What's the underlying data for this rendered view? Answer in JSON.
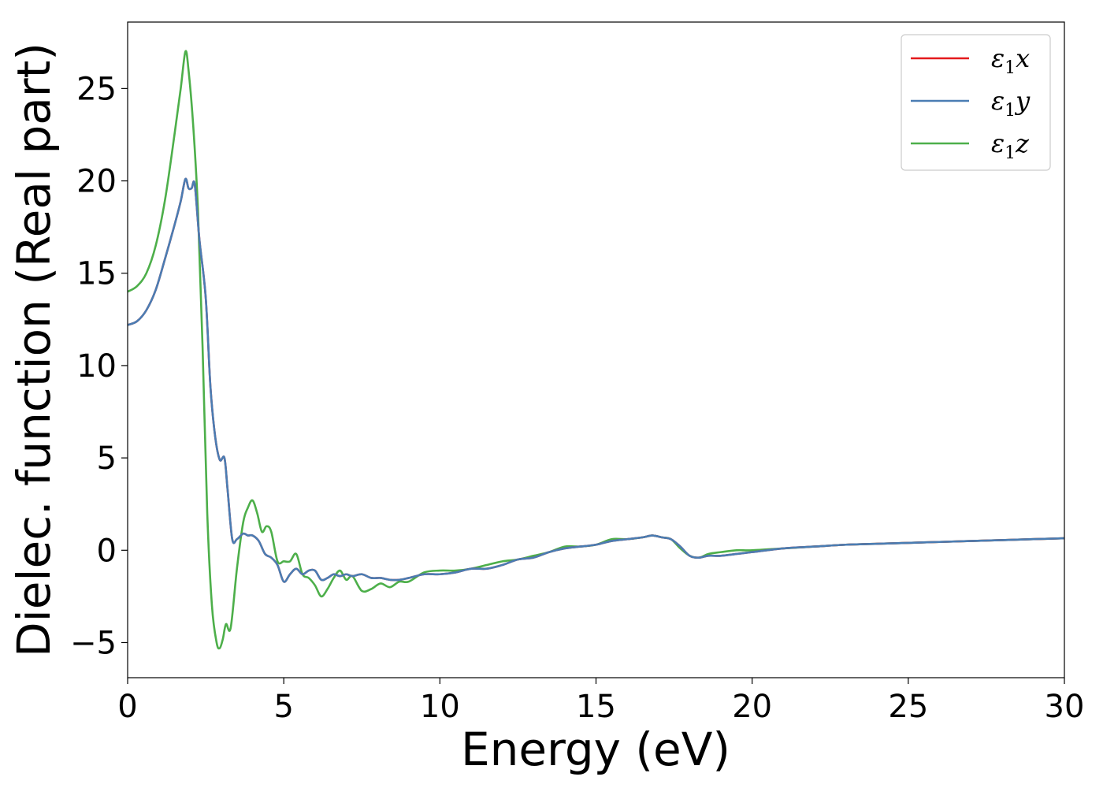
{
  "chart_data": {
    "type": "line",
    "xlabel": "Energy (eV)",
    "ylabel": "Dielec. function (Real part)",
    "xlim": [
      0,
      30
    ],
    "ylim": [
      -6.9,
      28.6
    ],
    "xticks": [
      0,
      5,
      10,
      15,
      20,
      25,
      30
    ],
    "xtick_labels": [
      "0",
      "5",
      "10",
      "15",
      "20",
      "25",
      "30"
    ],
    "yticks": [
      -5,
      0,
      5,
      10,
      15,
      20,
      25
    ],
    "ytick_labels": [
      "−5",
      "0",
      "5",
      "10",
      "15",
      "20",
      "25"
    ],
    "grid": false,
    "legend_position": "top-right",
    "series": [
      {
        "name": "ε1x",
        "legend_main": "ε",
        "legend_sub": "1",
        "legend_var": "x",
        "color": "#e41a1c",
        "x": [
          0,
          0.3,
          0.6,
          0.9,
          1.2,
          1.5,
          1.7,
          1.85,
          1.95,
          2.05,
          2.15,
          2.3,
          2.5,
          2.65,
          2.8,
          2.95,
          3.1,
          3.2,
          3.35,
          3.5,
          3.7,
          3.85,
          4.0,
          4.2,
          4.4,
          4.6,
          4.8,
          5.0,
          5.2,
          5.4,
          5.6,
          5.8,
          6.0,
          6.2,
          6.4,
          6.6,
          6.8,
          7.0,
          7.2,
          7.5,
          7.8,
          8.1,
          8.4,
          8.7,
          9.0,
          9.5,
          10.0,
          10.5,
          11.0,
          11.5,
          12.0,
          12.5,
          13.0,
          13.5,
          14.0,
          14.5,
          15.0,
          15.5,
          16.0,
          16.5,
          16.8,
          17.1,
          17.4,
          17.7,
          18.0,
          18.3,
          18.6,
          19.0,
          19.5,
          20.0,
          21.0,
          22.0,
          23.0,
          24.0,
          25.0,
          26.0,
          27.0,
          28.0,
          29.0,
          30.0
        ],
        "y": [
          12.2,
          12.4,
          13.0,
          14.1,
          15.8,
          17.6,
          18.9,
          20.1,
          19.6,
          19.6,
          19.8,
          16.8,
          13.7,
          8.9,
          6.2,
          4.9,
          5.0,
          3.3,
          0.6,
          0.6,
          0.9,
          0.8,
          0.8,
          0.5,
          -0.2,
          -0.4,
          -0.8,
          -1.7,
          -1.3,
          -1.0,
          -1.3,
          -1.1,
          -1.1,
          -1.6,
          -1.5,
          -1.3,
          -1.4,
          -1.3,
          -1.4,
          -1.3,
          -1.5,
          -1.5,
          -1.6,
          -1.6,
          -1.5,
          -1.3,
          -1.3,
          -1.2,
          -1.0,
          -1.0,
          -0.8,
          -0.5,
          -0.4,
          -0.1,
          0.1,
          0.2,
          0.3,
          0.5,
          0.6,
          0.7,
          0.8,
          0.7,
          0.6,
          0.2,
          -0.3,
          -0.4,
          -0.3,
          -0.3,
          -0.2,
          -0.1,
          0.1,
          0.2,
          0.3,
          0.35,
          0.4,
          0.45,
          0.5,
          0.55,
          0.6,
          0.65
        ]
      },
      {
        "name": "ε1y",
        "legend_main": "ε",
        "legend_sub": "1",
        "legend_var": "y",
        "color": "#4a7db3",
        "x": [
          0,
          0.3,
          0.6,
          0.9,
          1.2,
          1.5,
          1.7,
          1.85,
          1.95,
          2.05,
          2.15,
          2.3,
          2.5,
          2.65,
          2.8,
          2.95,
          3.1,
          3.2,
          3.35,
          3.5,
          3.7,
          3.85,
          4.0,
          4.2,
          4.4,
          4.6,
          4.8,
          5.0,
          5.2,
          5.4,
          5.6,
          5.8,
          6.0,
          6.2,
          6.4,
          6.6,
          6.8,
          7.0,
          7.2,
          7.5,
          7.8,
          8.1,
          8.4,
          8.7,
          9.0,
          9.5,
          10.0,
          10.5,
          11.0,
          11.5,
          12.0,
          12.5,
          13.0,
          13.5,
          14.0,
          14.5,
          15.0,
          15.5,
          16.0,
          16.5,
          16.8,
          17.1,
          17.4,
          17.7,
          18.0,
          18.3,
          18.6,
          19.0,
          19.5,
          20.0,
          21.0,
          22.0,
          23.0,
          24.0,
          25.0,
          26.0,
          27.0,
          28.0,
          29.0,
          30.0
        ],
        "y": [
          12.2,
          12.4,
          13.0,
          14.1,
          15.8,
          17.6,
          18.9,
          20.1,
          19.6,
          19.6,
          19.8,
          16.8,
          13.7,
          8.9,
          6.2,
          4.9,
          5.0,
          3.3,
          0.6,
          0.6,
          0.9,
          0.8,
          0.8,
          0.5,
          -0.2,
          -0.4,
          -0.8,
          -1.7,
          -1.3,
          -1.0,
          -1.3,
          -1.1,
          -1.1,
          -1.6,
          -1.5,
          -1.3,
          -1.4,
          -1.3,
          -1.4,
          -1.3,
          -1.5,
          -1.5,
          -1.6,
          -1.6,
          -1.5,
          -1.3,
          -1.3,
          -1.2,
          -1.0,
          -1.0,
          -0.8,
          -0.5,
          -0.4,
          -0.1,
          0.1,
          0.2,
          0.3,
          0.5,
          0.6,
          0.7,
          0.8,
          0.7,
          0.6,
          0.2,
          -0.3,
          -0.4,
          -0.3,
          -0.3,
          -0.2,
          -0.1,
          0.1,
          0.2,
          0.3,
          0.35,
          0.4,
          0.45,
          0.5,
          0.55,
          0.6,
          0.65
        ]
      },
      {
        "name": "ε1z",
        "legend_main": "ε",
        "legend_sub": "1",
        "legend_var": "z",
        "color": "#4daf4a",
        "x": [
          0,
          0.3,
          0.6,
          0.9,
          1.2,
          1.5,
          1.7,
          1.85,
          1.95,
          2.1,
          2.25,
          2.4,
          2.55,
          2.7,
          2.85,
          2.95,
          3.05,
          3.15,
          3.3,
          3.5,
          3.7,
          3.85,
          4.0,
          4.15,
          4.3,
          4.45,
          4.6,
          4.8,
          5.0,
          5.2,
          5.4,
          5.6,
          5.8,
          6.0,
          6.2,
          6.4,
          6.6,
          6.8,
          7.0,
          7.2,
          7.5,
          7.8,
          8.1,
          8.4,
          8.7,
          9.0,
          9.5,
          10.0,
          10.5,
          11.0,
          11.5,
          12.0,
          12.5,
          13.0,
          13.5,
          14.0,
          14.5,
          15.0,
          15.5,
          16.0,
          16.5,
          16.8,
          17.1,
          17.4,
          17.7,
          18.0,
          18.3,
          18.6,
          19.0,
          19.5,
          20.0,
          21.0,
          22.0,
          23.0,
          24.0,
          25.0,
          26.0,
          27.0,
          28.0,
          29.0,
          30.0
        ],
        "y": [
          14.0,
          14.3,
          15.0,
          16.5,
          19.0,
          22.5,
          25.0,
          27.0,
          26.0,
          23.0,
          18.5,
          11.0,
          2.0,
          -3.0,
          -5.0,
          -5.3,
          -4.8,
          -4.0,
          -4.2,
          -1.0,
          1.5,
          2.3,
          2.7,
          2.0,
          1.0,
          1.3,
          1.0,
          -0.6,
          -0.6,
          -0.6,
          -0.2,
          -1.3,
          -1.5,
          -1.9,
          -2.5,
          -2.1,
          -1.5,
          -1.1,
          -1.6,
          -1.4,
          -2.2,
          -2.1,
          -1.8,
          -2.0,
          -1.7,
          -1.7,
          -1.2,
          -1.1,
          -1.1,
          -1.0,
          -0.8,
          -0.6,
          -0.5,
          -0.3,
          -0.1,
          0.2,
          0.2,
          0.3,
          0.6,
          0.6,
          0.7,
          0.8,
          0.7,
          0.6,
          0.1,
          -0.3,
          -0.4,
          -0.2,
          -0.1,
          0.0,
          0.0,
          0.1,
          0.2,
          0.3,
          0.35,
          0.4,
          0.45,
          0.5,
          0.55,
          0.6,
          0.65
        ]
      }
    ]
  }
}
